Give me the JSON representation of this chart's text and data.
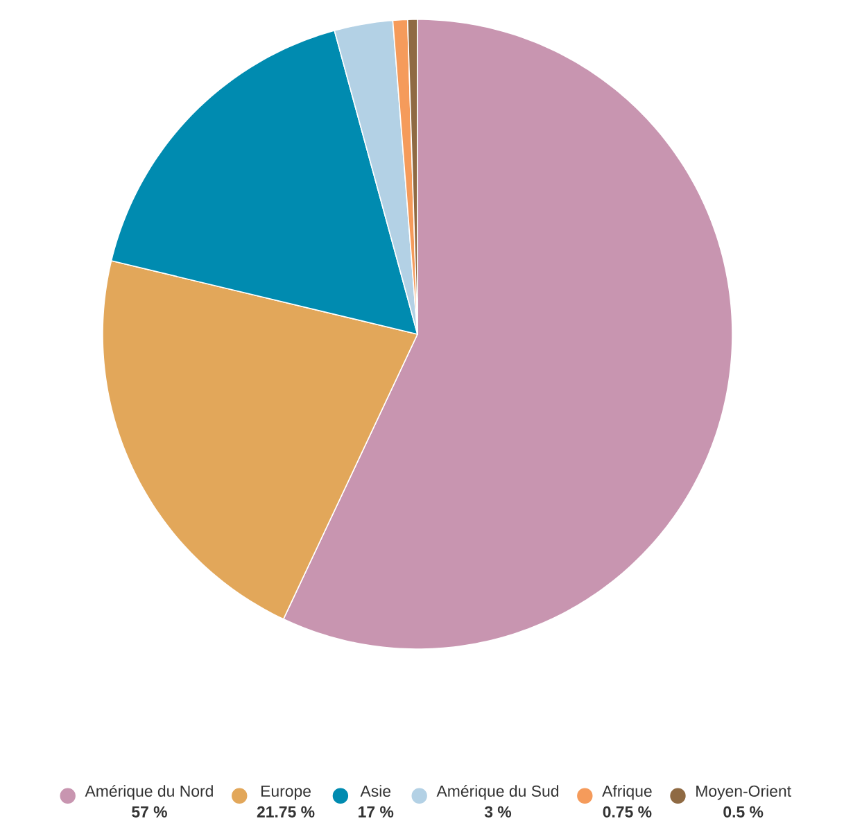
{
  "chart_data": {
    "type": "pie",
    "categories": [
      "Amérique du Nord",
      "Europe",
      "Asie",
      "Amérique du Sud",
      "Afrique",
      "Moyen-Orient"
    ],
    "values": [
      57,
      21.75,
      17,
      3,
      0.75,
      0.5
    ],
    "value_labels": [
      "57 %",
      "21.75 %",
      "17 %",
      "3 %",
      "0.75 %",
      "0.5 %"
    ],
    "colors": [
      "#c895b0",
      "#e2a75a",
      "#008bb0",
      "#b3d1e5",
      "#f59b5b",
      "#8f6a43"
    ],
    "legend": "bottom"
  }
}
